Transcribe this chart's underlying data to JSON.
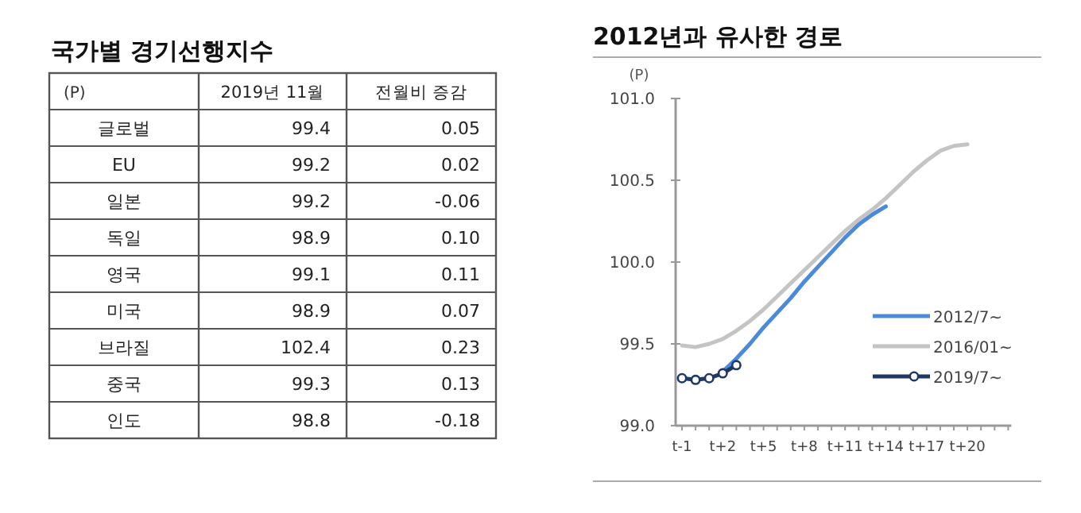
{
  "chart_data": [
    {
      "type": "other",
      "title": "국가별 경기선행지수",
      "annotations": [
        "(P)"
      ],
      "categories": [
        "글로벌",
        "EU",
        "일본",
        "독일",
        "영국",
        "미국",
        "브라질",
        "중국",
        "인도"
      ],
      "series": [
        {
          "name": "2019년 11월",
          "values": [
            99.4,
            99.2,
            99.2,
            98.9,
            99.1,
            98.9,
            102.4,
            99.3,
            98.8
          ],
          "value_labels": [
            "99.4",
            "99.2",
            "99.2",
            "98.9",
            "99.1",
            "98.9",
            "102.4",
            "99.3",
            "98.8"
          ]
        },
        {
          "name": "전월비 증감",
          "values": [
            0.05,
            0.02,
            -0.06,
            0.1,
            0.11,
            0.07,
            0.23,
            0.13,
            -0.18
          ],
          "value_labels": [
            "0.05",
            "0.02",
            "-0.06",
            "0.10",
            "0.11",
            "0.07",
            "0.23",
            "0.13",
            "-0.18"
          ]
        }
      ]
    },
    {
      "type": "line",
      "title": "2012년과 유사한 경로",
      "ylabel": "(P)",
      "legend": "right",
      "categories": [
        "t-1",
        null,
        null,
        "t+2",
        null,
        null,
        "t+5",
        null,
        null,
        "t+8",
        null,
        null,
        "t+11",
        null,
        null,
        "t+14",
        null,
        null,
        "t+17",
        null,
        null,
        "t+20",
        null,
        null,
        null
      ],
      "ylim": [
        99.0,
        101.0
      ],
      "yticks": [
        {
          "value": 99.0,
          "label": "99.0"
        },
        {
          "value": 99.5,
          "label": "99.5"
        },
        {
          "value": 100.0,
          "label": "100.0"
        },
        {
          "value": 100.5,
          "label": "100.5"
        },
        {
          "value": 101.0,
          "label": "101.0"
        }
      ],
      "series": [
        {
          "name": "2012/7~",
          "color": "#4a8ad8",
          "marker": "none",
          "values": [
            null,
            null,
            null,
            99.33,
            99.41,
            99.5,
            99.6,
            99.69,
            99.78,
            99.88,
            99.97,
            100.06,
            100.15,
            100.23,
            100.29,
            100.34,
            null,
            null,
            null,
            null,
            null,
            null,
            null,
            null,
            null
          ]
        },
        {
          "name": "2016/01~",
          "color": "#c4c4c4",
          "marker": "none",
          "values": [
            99.49,
            99.48,
            99.5,
            99.53,
            99.58,
            99.64,
            99.71,
            99.79,
            99.87,
            99.95,
            100.03,
            100.11,
            100.19,
            100.26,
            100.32,
            100.39,
            100.47,
            100.55,
            100.62,
            100.68,
            100.71,
            100.72,
            null,
            null,
            null
          ]
        },
        {
          "name": "2019/7~",
          "color": "#1f3864",
          "marker": "circle",
          "values": [
            99.29,
            99.28,
            99.29,
            99.32,
            99.37,
            null,
            null,
            null,
            null,
            null,
            null,
            null,
            null,
            null,
            null,
            null,
            null,
            null,
            null,
            null,
            null,
            null,
            null,
            null,
            null
          ]
        }
      ]
    }
  ]
}
